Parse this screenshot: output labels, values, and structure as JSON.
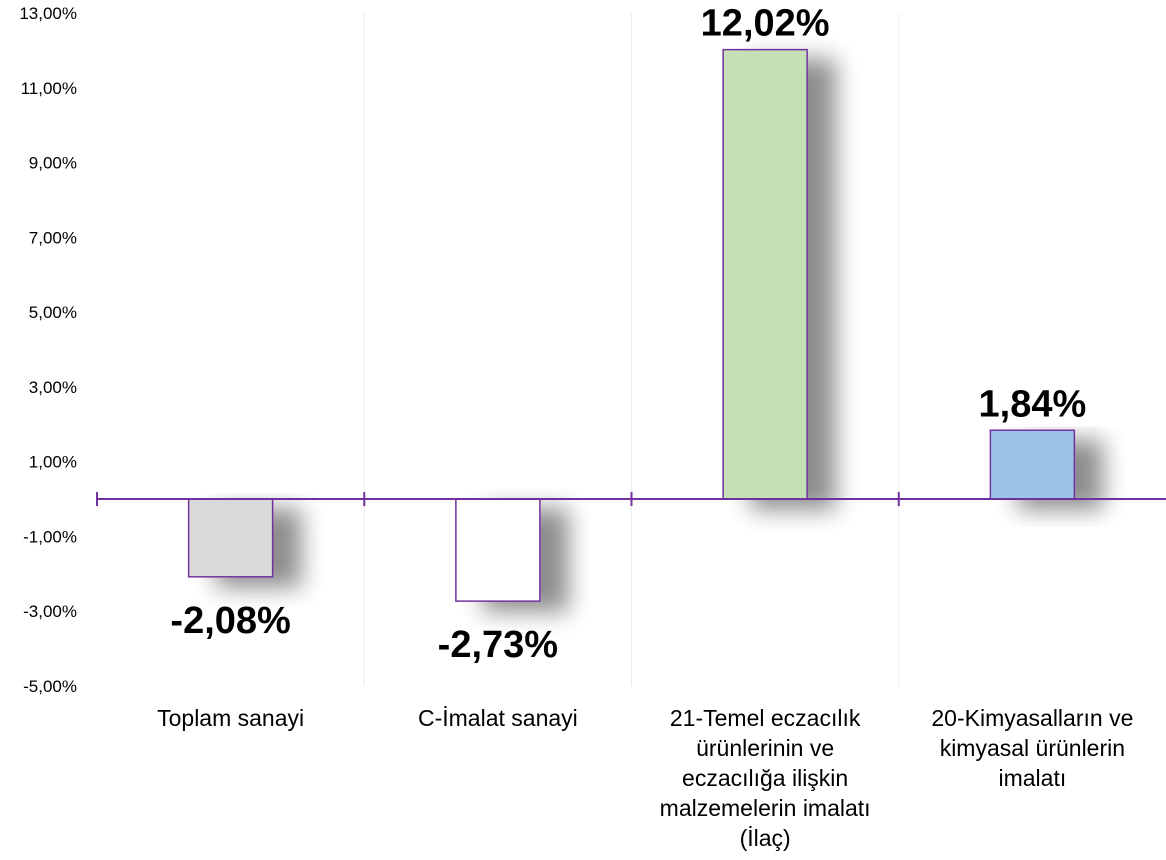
{
  "chart_data": {
    "type": "bar",
    "categories": [
      [
        "Toplam sanayi"
      ],
      [
        "C-İmalat sanayi"
      ],
      [
        "21-Temel eczacılık",
        "ürünlerinin ve",
        "eczacılığa ilişkin",
        "malzemelerin imalatı",
        "(İlaç)"
      ],
      [
        "20-Kimyasalların ve",
        "kimyasal ürünlerin",
        "imalatı"
      ]
    ],
    "values": [
      -2.08,
      -2.73,
      12.02,
      1.84
    ],
    "data_labels": [
      "-2,08%",
      "-2,73%",
      "12,02%",
      "1,84%"
    ],
    "bar_colors": [
      "#d9d9d9",
      "#ffffff",
      "#c5e0b4",
      "#9dc3e6"
    ],
    "bar_border_color": "#7030a0",
    "axis_color": "#7030a0",
    "ylim": [
      -5,
      13
    ],
    "yticks": [
      -5,
      -3,
      -1,
      1,
      3,
      5,
      7,
      9,
      11,
      13
    ],
    "ytick_labels": [
      "-5,00%",
      "-3,00%",
      "-1,00%",
      "1,00%",
      "3,00%",
      "5,00%",
      "7,00%",
      "9,00%",
      "11,00%",
      "13,00%"
    ],
    "grid": false,
    "legend": "none",
    "title": "",
    "xlabel": "",
    "ylabel": ""
  }
}
